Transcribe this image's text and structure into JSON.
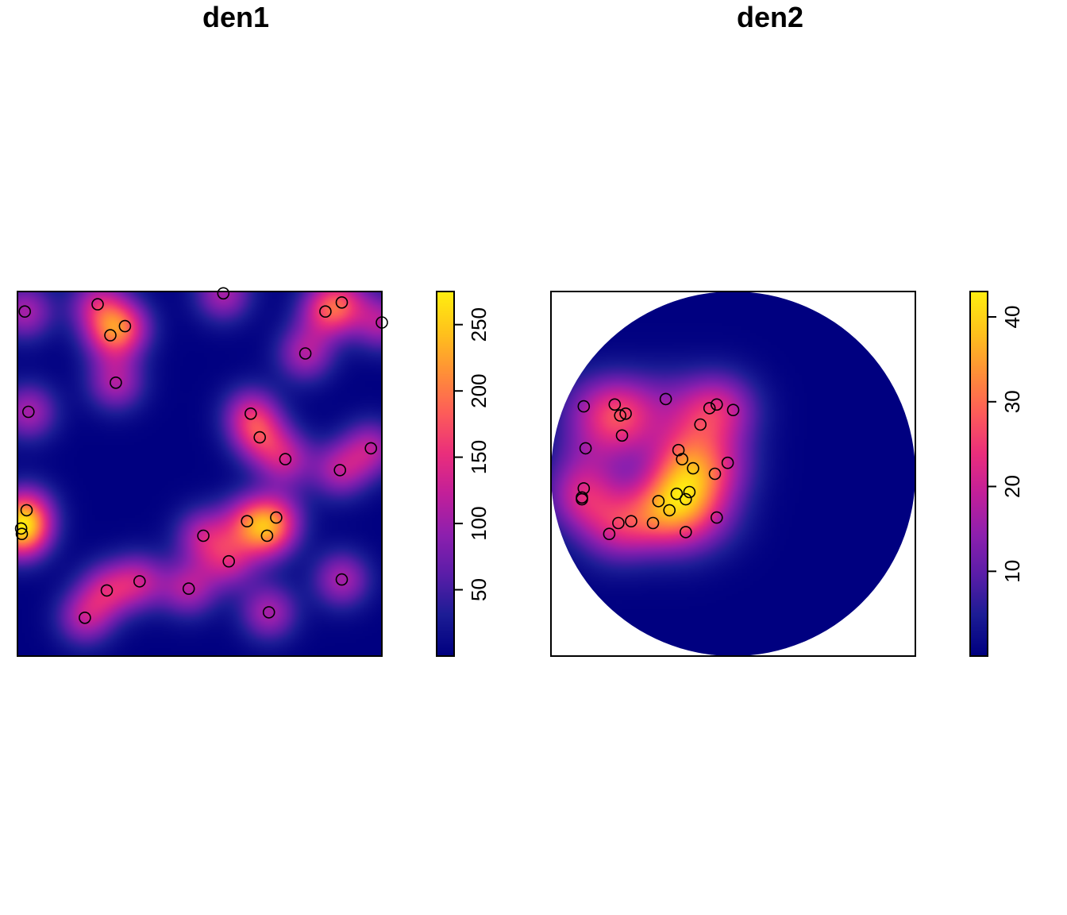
{
  "colors": {
    "scale": [
      "#000080",
      "#1c1c95",
      "#5a1da8",
      "#8e1fae",
      "#c21f9a",
      "#ea2e7c",
      "#fd5c5a",
      "#ff8f38",
      "#ffc21c",
      "#ffee10"
    ],
    "background": "#ffffff",
    "frame": "#000000",
    "marker": "#000000"
  },
  "chart_data": [
    {
      "type": "heatmap",
      "title": "den1",
      "window": "square",
      "xlim": [
        0,
        1
      ],
      "ylim": [
        0,
        1
      ],
      "bandwidth": 0.055,
      "legend": {
        "position": "right",
        "range": [
          0,
          275
        ],
        "ticks": [
          50,
          100,
          150,
          200,
          250
        ]
      },
      "points": [
        [
          0.02,
          0.945
        ],
        [
          0.22,
          0.965
        ],
        [
          0.255,
          0.88
        ],
        [
          0.295,
          0.905
        ],
        [
          0.565,
          0.995
        ],
        [
          0.845,
          0.945
        ],
        [
          0.89,
          0.97
        ],
        [
          1.0,
          0.915
        ],
        [
          0.79,
          0.83
        ],
        [
          0.27,
          0.75
        ],
        [
          0.03,
          0.67
        ],
        [
          0.64,
          0.665
        ],
        [
          0.665,
          0.6
        ],
        [
          0.735,
          0.54
        ],
        [
          0.97,
          0.57
        ],
        [
          0.885,
          0.51
        ],
        [
          0.025,
          0.4
        ],
        [
          0.01,
          0.35
        ],
        [
          0.012,
          0.335
        ],
        [
          0.63,
          0.37
        ],
        [
          0.71,
          0.38
        ],
        [
          0.685,
          0.33
        ],
        [
          0.51,
          0.33
        ],
        [
          0.58,
          0.26
        ],
        [
          0.335,
          0.205
        ],
        [
          0.245,
          0.18
        ],
        [
          0.47,
          0.185
        ],
        [
          0.89,
          0.21
        ],
        [
          0.185,
          0.105
        ],
        [
          0.69,
          0.12
        ]
      ]
    },
    {
      "type": "heatmap",
      "title": "den2",
      "window": "disc",
      "xlim": [
        0,
        1
      ],
      "ylim": [
        0,
        1
      ],
      "bandwidth": 0.07,
      "legend": {
        "position": "right",
        "range": [
          0,
          43
        ],
        "ticks": [
          10,
          20,
          30,
          40
        ]
      },
      "points": [
        [
          0.09,
          0.685
        ],
        [
          0.175,
          0.69
        ],
        [
          0.19,
          0.66
        ],
        [
          0.205,
          0.665
        ],
        [
          0.315,
          0.705
        ],
        [
          0.435,
          0.68
        ],
        [
          0.455,
          0.69
        ],
        [
          0.5,
          0.675
        ],
        [
          0.41,
          0.635
        ],
        [
          0.195,
          0.605
        ],
        [
          0.095,
          0.57
        ],
        [
          0.35,
          0.565
        ],
        [
          0.36,
          0.54
        ],
        [
          0.39,
          0.515
        ],
        [
          0.45,
          0.5
        ],
        [
          0.485,
          0.53
        ],
        [
          0.09,
          0.46
        ],
        [
          0.085,
          0.435
        ],
        [
          0.085,
          0.43
        ],
        [
          0.345,
          0.445
        ],
        [
          0.38,
          0.45
        ],
        [
          0.37,
          0.43
        ],
        [
          0.295,
          0.425
        ],
        [
          0.325,
          0.4
        ],
        [
          0.185,
          0.365
        ],
        [
          0.22,
          0.37
        ],
        [
          0.28,
          0.365
        ],
        [
          0.455,
          0.38
        ],
        [
          0.16,
          0.335
        ],
        [
          0.37,
          0.34
        ]
      ]
    }
  ]
}
